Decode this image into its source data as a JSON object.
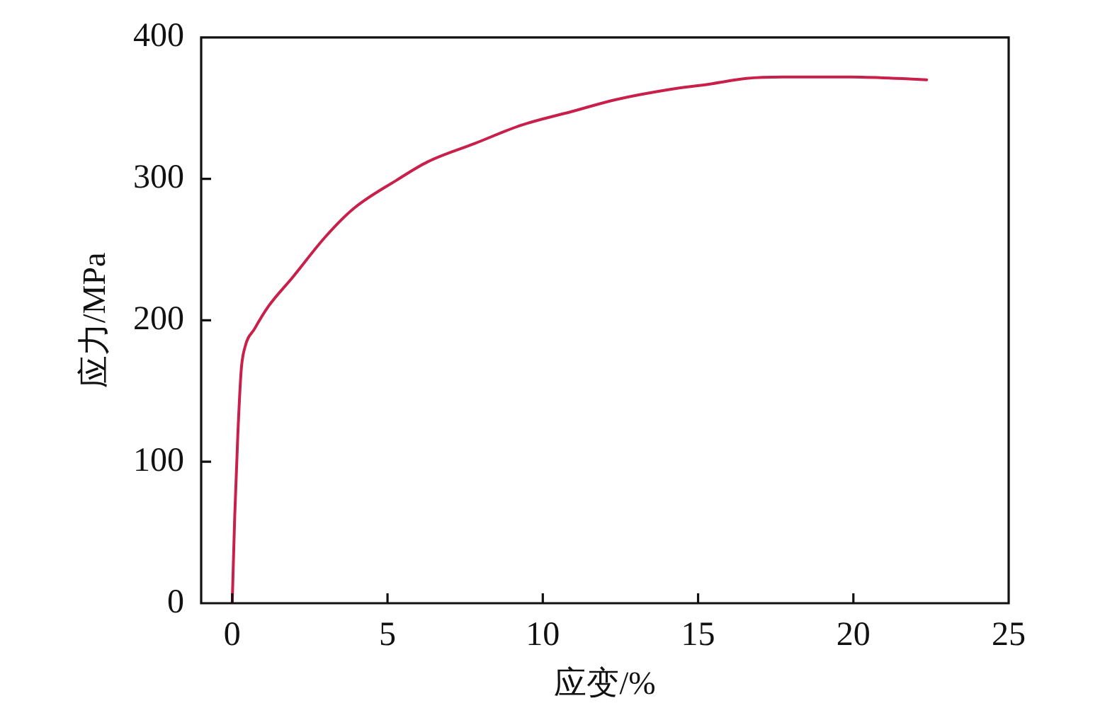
{
  "chart_data": {
    "type": "line",
    "xlabel": "应变/%",
    "ylabel": "应力/MPa",
    "x": [
      0,
      0.08,
      0.18,
      0.29,
      0.41,
      0.72,
      1.17,
      1.93,
      3.0,
      3.91,
      5.29,
      6.29,
      7.81,
      9.32,
      11.0,
      12.35,
      14.03,
      15.38,
      16.55,
      17.73,
      19.92,
      21.43,
      22.36
    ],
    "values": [
      0,
      61,
      119,
      165,
      181,
      194,
      210,
      230,
      259,
      279,
      299,
      312,
      325,
      338,
      348,
      356,
      363,
      367,
      371,
      372,
      372,
      371,
      370
    ],
    "color": "#c8204a",
    "marker": "none",
    "line_style": "solid",
    "xlim": [
      -1,
      25
    ],
    "xticks": [
      0,
      5,
      10,
      15,
      20,
      25
    ],
    "ylim": [
      0,
      400
    ],
    "yticks": [
      0,
      100,
      200,
      300,
      400
    ]
  }
}
